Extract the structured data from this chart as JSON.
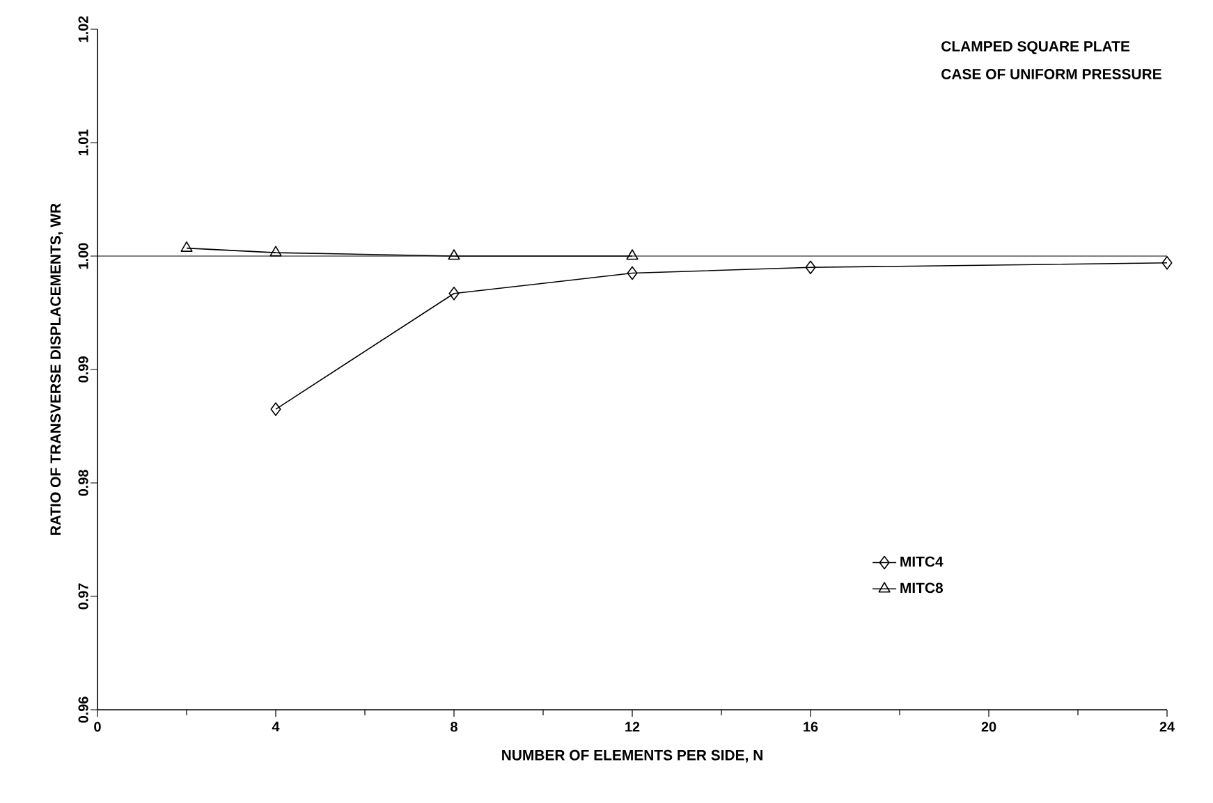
{
  "chart_data": {
    "type": "line",
    "title": "CLAMPED SQUARE PLATE",
    "subtitle": "CASE OF UNIFORM PRESSURE",
    "xlabel": "NUMBER OF ELEMENTS PER SIDE, N",
    "ylabel": "RATIO OF TRANSVERSE DISPLACEMENTS, WR",
    "xlim": [
      0,
      24
    ],
    "xticks": [
      0,
      4,
      8,
      12,
      16,
      20,
      24
    ],
    "ylim": [
      0.96,
      1.02
    ],
    "yticks": [
      0.96,
      0.97,
      0.98,
      0.99,
      {
        "value": 1.0,
        "label": "1.00"
      },
      1.01,
      1.02
    ],
    "series": [
      {
        "name": "MITC4",
        "color": "#000000",
        "marker": "diamond",
        "x": [
          4,
          8,
          12,
          16,
          24
        ],
        "values": [
          0.9865,
          0.9967,
          0.9985,
          0.999,
          0.9994
        ]
      },
      {
        "name": "MITC8",
        "color": "#000000",
        "marker": "triangle",
        "x": [
          2,
          4,
          8,
          12
        ],
        "values": [
          1.0007,
          1.0003,
          1.0,
          1.0
        ]
      }
    ],
    "ref_lines": [
      {
        "axis": "y",
        "value": 1.0,
        "color": "#000000"
      }
    ],
    "grid": false,
    "legend": "bottom right",
    "line_style": "solid"
  }
}
